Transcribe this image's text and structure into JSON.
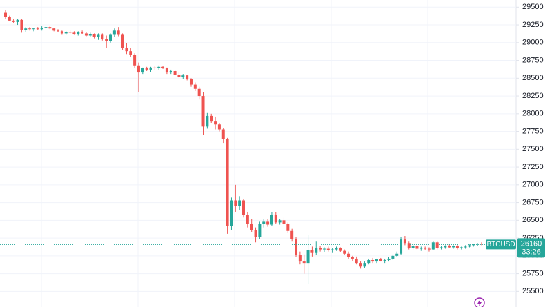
{
  "chart_data": {
    "type": "candlestick",
    "symbol": "BTCUSD",
    "last_price": 26160,
    "countdown": "33:26",
    "up_color": "#26a69a",
    "down_color": "#ef5350",
    "ylim": [
      25280,
      29600
    ],
    "yticks": [
      25500,
      25750,
      26000,
      26250,
      26500,
      26750,
      27000,
      27250,
      27500,
      27750,
      28000,
      28250,
      28500,
      28750,
      29000,
      29250,
      29500
    ],
    "grid": true,
    "candles": [
      [
        29420,
        29460,
        29330,
        29360
      ],
      [
        29360,
        29380,
        29300,
        29310
      ],
      [
        29310,
        29330,
        29270,
        29290
      ],
      [
        29290,
        29330,
        29250,
        29320
      ],
      [
        29320,
        29330,
        29140,
        29180
      ],
      [
        29180,
        29220,
        29150,
        29200
      ],
      [
        29200,
        29220,
        29170,
        29190
      ],
      [
        29190,
        29210,
        29160,
        29200
      ],
      [
        29200,
        29220,
        29180,
        29190
      ],
      [
        29190,
        29230,
        29170,
        29210
      ],
      [
        29210,
        29240,
        29190,
        29220
      ],
      [
        29220,
        29240,
        29190,
        29200
      ],
      [
        29200,
        29210,
        29160,
        29170
      ],
      [
        29170,
        29190,
        29150,
        29160
      ],
      [
        29160,
        29170,
        29110,
        29130
      ],
      [
        29130,
        29160,
        29110,
        29150
      ],
      [
        29150,
        29170,
        29120,
        29140
      ],
      [
        29140,
        29160,
        29110,
        29120
      ],
      [
        29120,
        29160,
        29100,
        29150
      ],
      [
        29150,
        29170,
        29120,
        29130
      ],
      [
        29130,
        29150,
        29090,
        29100
      ],
      [
        29100,
        29140,
        29080,
        29120
      ],
      [
        29120,
        29130,
        29060,
        29080
      ],
      [
        29080,
        29130,
        29040,
        29110
      ],
      [
        29110,
        29130,
        29030,
        29050
      ],
      [
        29050,
        29100,
        28930,
        29020
      ],
      [
        29020,
        29130,
        29000,
        29110
      ],
      [
        29110,
        29200,
        29080,
        29170
      ],
      [
        29170,
        29220,
        29090,
        29110
      ],
      [
        29110,
        29130,
        28900,
        28930
      ],
      [
        28930,
        28990,
        28840,
        28880
      ],
      [
        28880,
        28920,
        28800,
        28830
      ],
      [
        28830,
        28850,
        28640,
        28680
      ],
      [
        28680,
        28720,
        28300,
        28580
      ],
      [
        28580,
        28650,
        28560,
        28640
      ],
      [
        28640,
        28660,
        28600,
        28620
      ],
      [
        28620,
        28660,
        28590,
        28650
      ],
      [
        28650,
        28670,
        28620,
        28640
      ],
      [
        28640,
        28680,
        28620,
        28660
      ],
      [
        28660,
        28670,
        28630,
        28640
      ],
      [
        28640,
        28650,
        28560,
        28580
      ],
      [
        28580,
        28620,
        28560,
        28600
      ],
      [
        28600,
        28620,
        28540,
        28550
      ],
      [
        28550,
        28580,
        28500,
        28520
      ],
      [
        28520,
        28560,
        28490,
        28540
      ],
      [
        28540,
        28550,
        28470,
        28490
      ],
      [
        28490,
        28500,
        28380,
        28410
      ],
      [
        28410,
        28440,
        28320,
        28350
      ],
      [
        28350,
        28380,
        28200,
        28250
      ],
      [
        28250,
        28300,
        27700,
        27820
      ],
      [
        27820,
        28010,
        27790,
        27970
      ],
      [
        27970,
        28000,
        27870,
        27890
      ],
      [
        27890,
        27960,
        27780,
        27850
      ],
      [
        27850,
        27870,
        27750,
        27780
      ],
      [
        27780,
        27800,
        27580,
        27640
      ],
      [
        27640,
        27660,
        26310,
        26420
      ],
      [
        26420,
        26820,
        26360,
        26780
      ],
      [
        26780,
        27000,
        26620,
        26700
      ],
      [
        26700,
        26840,
        26640,
        26780
      ],
      [
        26780,
        26800,
        26540,
        26580
      ],
      [
        26580,
        26620,
        26400,
        26450
      ],
      [
        26450,
        26520,
        26330,
        26360
      ],
      [
        26360,
        26400,
        26190,
        26270
      ],
      [
        26270,
        26480,
        26240,
        26450
      ],
      [
        26450,
        26520,
        26400,
        26480
      ],
      [
        26480,
        26520,
        26410,
        26440
      ],
      [
        26440,
        26610,
        26420,
        26580
      ],
      [
        26580,
        26610,
        26450,
        26470
      ],
      [
        26470,
        26520,
        26440,
        26500
      ],
      [
        26500,
        26540,
        26420,
        26450
      ],
      [
        26450,
        26470,
        26320,
        26350
      ],
      [
        26350,
        26380,
        26200,
        26240
      ],
      [
        26240,
        26270,
        25980,
        26010
      ],
      [
        26010,
        26060,
        25880,
        25920
      ],
      [
        25920,
        26020,
        25750,
        25900
      ],
      [
        25900,
        26300,
        25600,
        26080
      ],
      [
        26080,
        26130,
        25990,
        26040
      ],
      [
        26040,
        26200,
        26010,
        26110
      ],
      [
        26110,
        26140,
        26060,
        26090
      ],
      [
        26090,
        26120,
        26050,
        26100
      ],
      [
        26100,
        26130,
        26060,
        26080
      ],
      [
        26080,
        26110,
        26040,
        26090
      ],
      [
        26090,
        26130,
        26070,
        26110
      ],
      [
        26110,
        26120,
        26050,
        26070
      ],
      [
        26070,
        26090,
        26010,
        26030
      ],
      [
        26030,
        26060,
        25960,
        25980
      ],
      [
        25980,
        26000,
        25930,
        25960
      ],
      [
        25960,
        25990,
        25880,
        25900
      ],
      [
        25900,
        25920,
        25820,
        25850
      ],
      [
        25850,
        25920,
        25830,
        25900
      ],
      [
        25900,
        25960,
        25880,
        25940
      ],
      [
        25940,
        25970,
        25900,
        25920
      ],
      [
        25920,
        25960,
        25900,
        25950
      ],
      [
        25950,
        25970,
        25920,
        25930
      ],
      [
        25930,
        25960,
        25900,
        25940
      ],
      [
        25940,
        25980,
        25920,
        25960
      ],
      [
        25960,
        26020,
        25940,
        26000
      ],
      [
        26000,
        26060,
        25980,
        26030
      ],
      [
        26030,
        26270,
        26010,
        26230
      ],
      [
        26230,
        26280,
        26150,
        26180
      ],
      [
        26180,
        26200,
        26090,
        26110
      ],
      [
        26110,
        26160,
        26090,
        26140
      ],
      [
        26140,
        26170,
        26080,
        26100
      ],
      [
        26100,
        26130,
        26070,
        26110
      ],
      [
        26110,
        26130,
        26080,
        26100
      ],
      [
        26100,
        26120,
        26060,
        26090
      ],
      [
        26090,
        26210,
        26080,
        26190
      ],
      [
        26190,
        26210,
        26090,
        26110
      ],
      [
        26110,
        26140,
        26090,
        26120
      ],
      [
        26120,
        26150,
        26100,
        26140
      ],
      [
        26140,
        26160,
        26110,
        26120
      ],
      [
        26120,
        26150,
        26100,
        26140
      ],
      [
        26140,
        26160,
        26090,
        26110
      ],
      [
        26110,
        26130,
        26090,
        26120
      ],
      [
        26120,
        26150,
        26100,
        26130
      ],
      [
        26130,
        26160,
        26120,
        26150
      ],
      [
        26150,
        26170,
        26130,
        26160
      ],
      [
        26160,
        26180,
        26140,
        26170
      ],
      [
        26170,
        26190,
        26150,
        26160
      ]
    ]
  }
}
